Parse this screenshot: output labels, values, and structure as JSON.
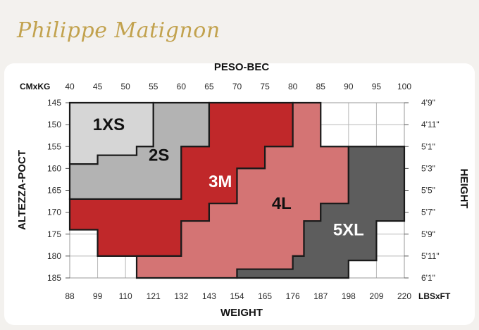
{
  "brand": {
    "logo_text": "Philippe Matignon"
  },
  "chart_data": {
    "type": "size-chart",
    "top_axis_title": "PESO-BEC",
    "top_unit_label": "CMxKG",
    "kg_ticks": [
      40,
      45,
      50,
      55,
      60,
      65,
      70,
      75,
      80,
      85,
      90,
      95,
      100
    ],
    "bottom_axis_title": "WEIGHT",
    "bottom_unit_label": "LBSxFT",
    "lbs_ticks": [
      88,
      99,
      110,
      121,
      132,
      143,
      154,
      165,
      176,
      187,
      198,
      209,
      220
    ],
    "left_axis_title": "ALTEZZA-POCT",
    "cm_ticks": [
      145,
      150,
      155,
      160,
      165,
      170,
      175,
      180,
      185
    ],
    "right_axis_title": "HEIGHT",
    "ft_ticks": [
      "4'9\"",
      "4'11\"",
      "5'1\"",
      "5'3\"",
      "5'5\"",
      "5'7\"",
      "5'9\"",
      "5'11\"",
      "6'1\""
    ],
    "x_range_kg": [
      40,
      100
    ],
    "y_range_cm": [
      145,
      185
    ],
    "grid": true,
    "sizes": [
      {
        "label": "1XS",
        "color": "#d6d6d6",
        "label_color": "#111111",
        "label_at": {
          "kg": 47,
          "cm": 150
        },
        "polygon": [
          [
            40,
            145
          ],
          [
            55,
            145
          ],
          [
            55,
            155
          ],
          [
            52,
            155
          ],
          [
            52,
            157
          ],
          [
            45,
            157
          ],
          [
            45,
            159
          ],
          [
            40,
            159
          ]
        ]
      },
      {
        "label": "2S",
        "color": "#b3b3b3",
        "label_color": "#111111",
        "label_at": {
          "kg": 56,
          "cm": 157
        },
        "polygon": [
          [
            55,
            145
          ],
          [
            65,
            145
          ],
          [
            65,
            155
          ],
          [
            60,
            155
          ],
          [
            60,
            167
          ],
          [
            40,
            167
          ],
          [
            40,
            159
          ],
          [
            45,
            159
          ],
          [
            45,
            157
          ],
          [
            52,
            157
          ],
          [
            52,
            155
          ],
          [
            55,
            155
          ]
        ]
      },
      {
        "label": "3M",
        "color": "#c0282a",
        "label_color": "#ffffff",
        "label_at": {
          "kg": 67,
          "cm": 163
        },
        "polygon": [
          [
            65,
            145
          ],
          [
            80,
            145
          ],
          [
            80,
            155
          ],
          [
            75,
            155
          ],
          [
            75,
            160
          ],
          [
            70,
            160
          ],
          [
            70,
            168
          ],
          [
            65,
            168
          ],
          [
            65,
            172
          ],
          [
            60,
            172
          ],
          [
            60,
            180
          ],
          [
            45,
            180
          ],
          [
            45,
            174
          ],
          [
            40,
            174
          ],
          [
            40,
            167
          ],
          [
            60,
            167
          ],
          [
            60,
            155
          ],
          [
            65,
            155
          ]
        ]
      },
      {
        "label": "4L",
        "color": "#d47474",
        "label_color": "#111111",
        "label_at": {
          "kg": 78,
          "cm": 168
        },
        "polygon": [
          [
            80,
            145
          ],
          [
            85,
            145
          ],
          [
            85,
            155
          ],
          [
            90,
            155
          ],
          [
            90,
            168
          ],
          [
            85,
            168
          ],
          [
            85,
            172
          ],
          [
            82,
            172
          ],
          [
            82,
            180
          ],
          [
            80,
            180
          ],
          [
            80,
            183
          ],
          [
            70,
            183
          ],
          [
            70,
            185
          ],
          [
            52,
            185
          ],
          [
            52,
            180
          ],
          [
            60,
            180
          ],
          [
            60,
            172
          ],
          [
            65,
            172
          ],
          [
            65,
            168
          ],
          [
            70,
            168
          ],
          [
            70,
            160
          ],
          [
            75,
            160
          ],
          [
            75,
            155
          ],
          [
            80,
            155
          ]
        ]
      },
      {
        "label": "5XL",
        "color": "#5d5d5d",
        "label_color": "#ffffff",
        "label_at": {
          "kg": 90,
          "cm": 174
        },
        "polygon": [
          [
            90,
            155
          ],
          [
            100,
            155
          ],
          [
            100,
            172
          ],
          [
            95,
            172
          ],
          [
            95,
            181
          ],
          [
            90,
            181
          ],
          [
            90,
            185
          ],
          [
            70,
            185
          ],
          [
            70,
            183
          ],
          [
            80,
            183
          ],
          [
            80,
            180
          ],
          [
            82,
            180
          ],
          [
            82,
            172
          ],
          [
            85,
            172
          ],
          [
            85,
            168
          ],
          [
            90,
            168
          ]
        ]
      }
    ]
  }
}
